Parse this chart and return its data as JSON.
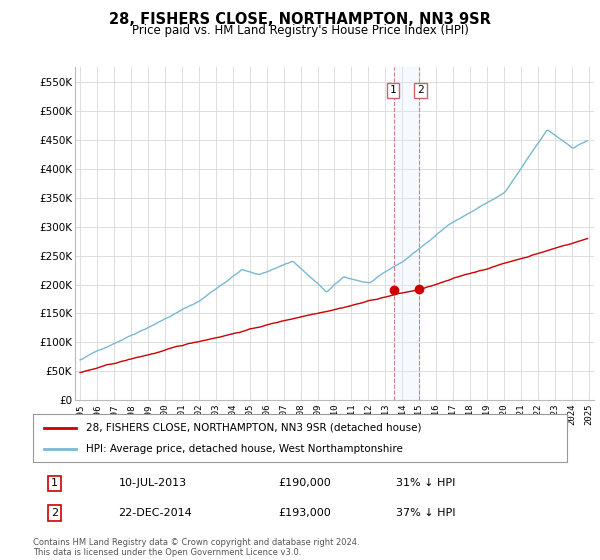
{
  "title": "28, FISHERS CLOSE, NORTHAMPTON, NN3 9SR",
  "subtitle": "Price paid vs. HM Land Registry's House Price Index (HPI)",
  "legend_line1": "28, FISHERS CLOSE, NORTHAMPTON, NN3 9SR (detached house)",
  "legend_line2": "HPI: Average price, detached house, West Northamptonshire",
  "table_row1": [
    "1",
    "10-JUL-2013",
    "£190,000",
    "31% ↓ HPI"
  ],
  "table_row2": [
    "2",
    "22-DEC-2014",
    "£193,000",
    "37% ↓ HPI"
  ],
  "footnote": "Contains HM Land Registry data © Crown copyright and database right 2024.\nThis data is licensed under the Open Government Licence v3.0.",
  "hpi_color": "#7ab8d4",
  "price_color": "#cc0000",
  "marker_color": "#cc0000",
  "vline_color": "#d08080",
  "shade_color": "#ddeeff",
  "grid_color": "#dddddd",
  "background_color": "#ffffff",
  "ylim": [
    0,
    575000
  ],
  "yticks": [
    0,
    50000,
    100000,
    150000,
    200000,
    250000,
    300000,
    350000,
    400000,
    450000,
    500000,
    550000
  ],
  "sale1_x": 2013.53,
  "sale2_x": 2014.97,
  "sale1_price": 190000,
  "sale2_price": 193000,
  "xlim_left": 1994.7,
  "xlim_right": 2025.3
}
